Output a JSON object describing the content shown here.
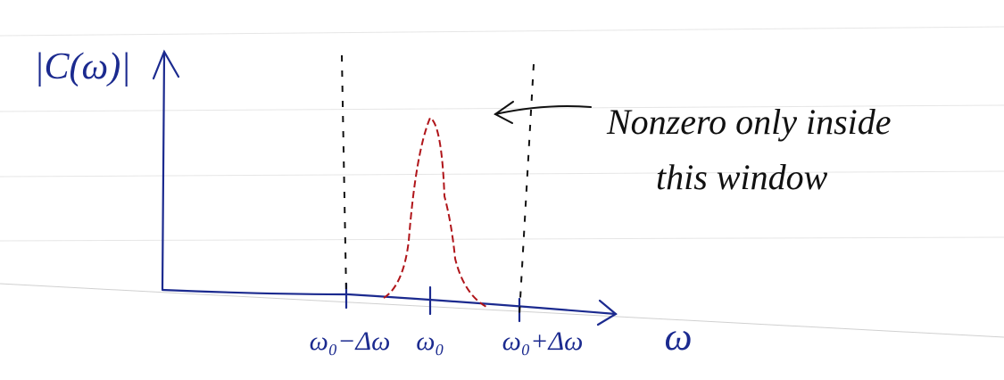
{
  "y_axis_label": "|C(ω)|",
  "annotation": {
    "lines": [
      "Nonzero only inside",
      "this window"
    ]
  },
  "x_labels": {
    "lower": "ω₀−Δω",
    "center": "ω₀",
    "upper": "ω₀+Δω"
  },
  "x_axis_label": "ω"
}
